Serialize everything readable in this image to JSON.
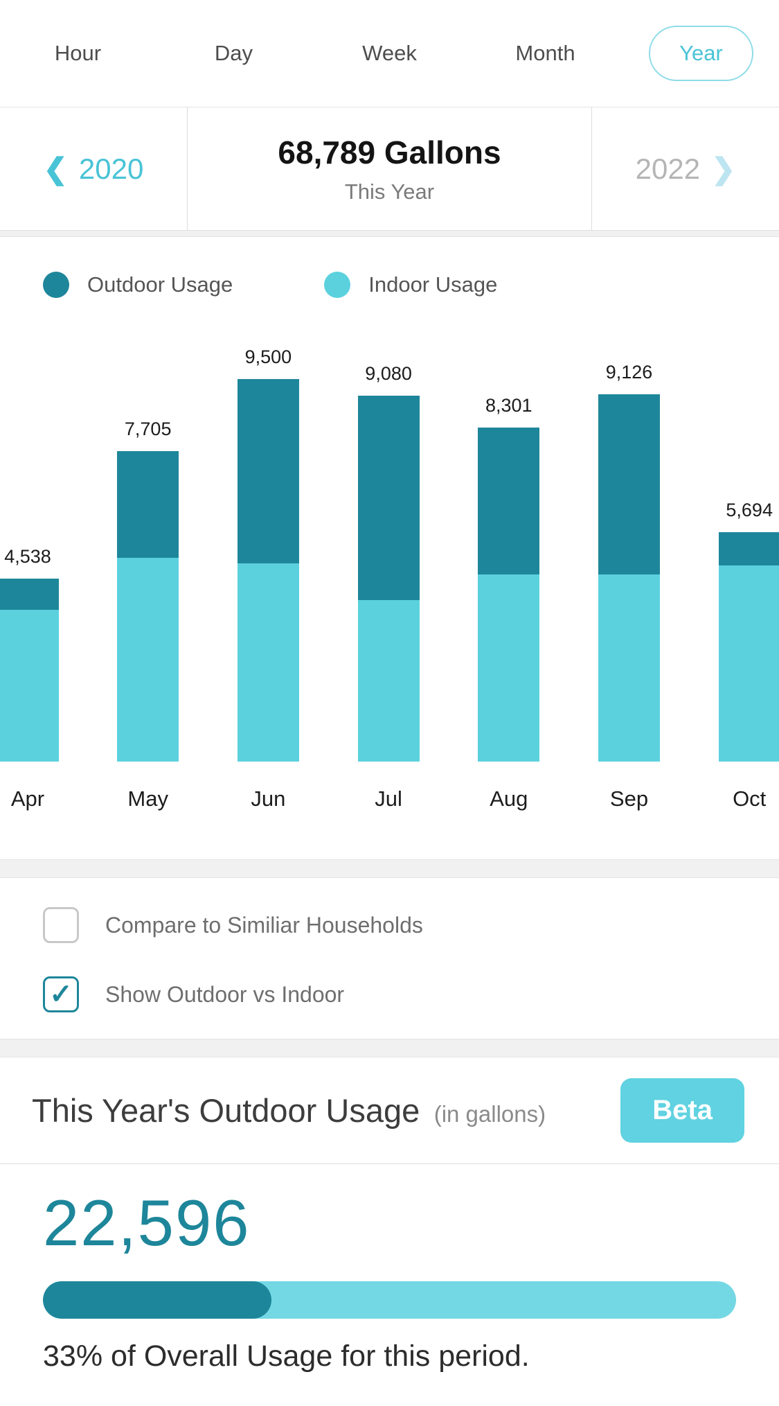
{
  "colors": {
    "outdoor_teal": "#1e869a",
    "indoor_teal": "#5bd1de",
    "accent_teal": "#49c3d6",
    "pale_chevron": "#bde5f1",
    "beta_bg": "#60d2e1",
    "progress_track": "#74d8e4",
    "pill_border": "#8edce8"
  },
  "icons": {
    "checkmark": "✓",
    "chevron_left": "❮",
    "chevron_right": "❯"
  },
  "tabs": {
    "items": [
      {
        "label": "Hour",
        "selected": false
      },
      {
        "label": "Day",
        "selected": false
      },
      {
        "label": "Week",
        "selected": false
      },
      {
        "label": "Month",
        "selected": false
      },
      {
        "label": "Year",
        "selected": true
      }
    ]
  },
  "period_nav": {
    "prev_year": "2020",
    "next_year": "2022",
    "title": "68,789 Gallons",
    "subtitle": "This Year"
  },
  "legend": {
    "outdoor_label": "Outdoor Usage",
    "indoor_label": "Indoor Usage"
  },
  "chart_data": {
    "type": "bar",
    "stacked": true,
    "title": "68,789 Gallons This Year",
    "categories": [
      "Apr",
      "May",
      "Jun",
      "Jul",
      "Aug",
      "Sep",
      "Oct"
    ],
    "totals": [
      4538,
      7705,
      9500,
      9080,
      8301,
      9126,
      5694
    ],
    "total_labels": [
      "4,538",
      "7,705",
      "9,500",
      "9,080",
      "8,301",
      "9,126",
      "5,694"
    ],
    "series": [
      {
        "name": "Indoor Usage",
        "values": [
          3758,
          5060,
          4920,
          4010,
          4650,
          4650,
          4870
        ]
      },
      {
        "name": "Outdoor Usage",
        "values": [
          780,
          2645,
          4580,
          5070,
          3651,
          4476,
          824
        ]
      }
    ],
    "ylim": [
      0,
      9500
    ],
    "legend_position": "top",
    "grid": false
  },
  "options": {
    "items": [
      {
        "name": "compare-similar-households",
        "label": "Compare to Similiar Households",
        "checked": false
      },
      {
        "name": "show-outdoor-vs-indoor",
        "label": "Show Outdoor vs Indoor",
        "checked": true
      }
    ]
  },
  "outdoor_summary": {
    "title": "This Year's Outdoor Usage",
    "unit_note": "(in gallons)",
    "beta_label": "Beta",
    "value": "22,596",
    "percent": 33,
    "percent_text": "33% of Overall Usage for this period."
  }
}
